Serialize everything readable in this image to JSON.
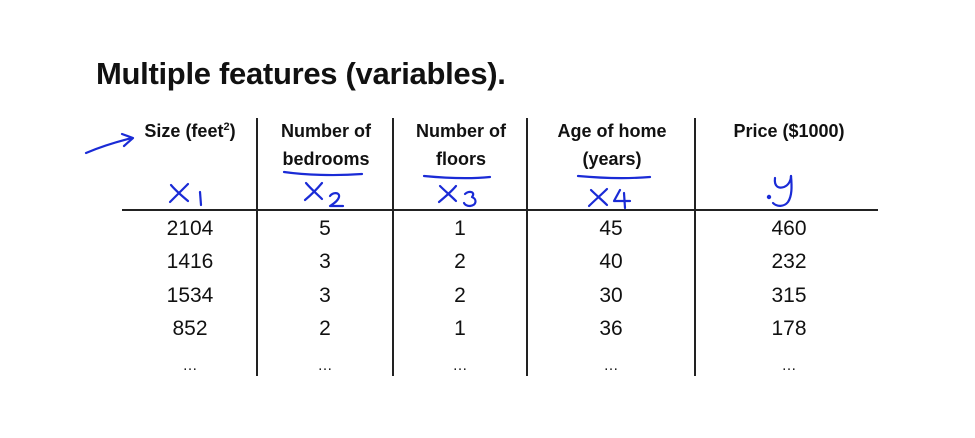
{
  "title": "Multiple features (variables).",
  "table": {
    "headers": [
      {
        "line1": "Size (feet",
        "sup": "2",
        "line1_end": ")",
        "line2": ""
      },
      {
        "line1": "Number of",
        "line2": "bedrooms"
      },
      {
        "line1": "Number of",
        "line2": "floors"
      },
      {
        "line1": "Age of home",
        "line2": "(years)"
      },
      {
        "line1": "Price ($1000)",
        "line2": ""
      }
    ],
    "rows": [
      [
        "2104",
        "5",
        "1",
        "45",
        "460"
      ],
      [
        "1416",
        "3",
        "2",
        "40",
        "232"
      ],
      [
        "1534",
        "3",
        "2",
        "30",
        "315"
      ],
      [
        "852",
        "2",
        "1",
        "36",
        "178"
      ],
      [
        "…",
        "…",
        "…",
        "…",
        "…"
      ]
    ]
  },
  "annotations": {
    "color": "#1a2bd6",
    "marks": [
      "arrow-icon",
      "x1-handwritten",
      "x2-handwritten",
      "x3-handwritten",
      "x4-handwritten",
      "y-handwritten"
    ]
  }
}
